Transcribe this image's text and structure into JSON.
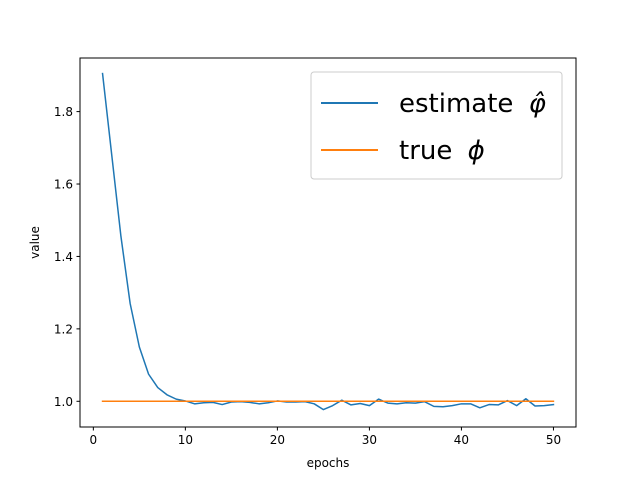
{
  "chart_data": {
    "type": "line",
    "title": "",
    "xlabel": "epochs",
    "ylabel": "value",
    "xlim": [
      -1.45,
      52.45
    ],
    "ylim": [
      0.929,
      1.948
    ],
    "xticks": [
      0,
      10,
      20,
      30,
      40,
      50
    ],
    "yticks": [
      1.0,
      1.2,
      1.4,
      1.6,
      1.8
    ],
    "ytick_labels": [
      "1.0",
      "1.2",
      "1.4",
      "1.6",
      "1.8"
    ],
    "grid": false,
    "legend_position": "top-right",
    "x": [
      1,
      2,
      3,
      4,
      5,
      6,
      7,
      8,
      9,
      10,
      11,
      12,
      13,
      14,
      15,
      16,
      17,
      18,
      19,
      20,
      21,
      22,
      23,
      24,
      25,
      26,
      27,
      28,
      29,
      30,
      31,
      32,
      33,
      34,
      35,
      36,
      37,
      38,
      39,
      40,
      41,
      42,
      43,
      44,
      45,
      46,
      47,
      48,
      49,
      50
    ],
    "series": [
      {
        "name": "estimate",
        "legend_symbol": "φ̂",
        "color": "#1f77b4",
        "values": [
          1.905,
          1.68,
          1.455,
          1.27,
          1.15,
          1.075,
          1.038,
          1.018,
          1.006,
          1.001,
          0.993,
          0.996,
          0.997,
          0.991,
          0.998,
          0.999,
          0.997,
          0.993,
          0.996,
          1.001,
          0.998,
          0.998,
          0.999,
          0.993,
          0.977,
          0.988,
          1.003,
          0.99,
          0.994,
          0.988,
          1.006,
          0.995,
          0.993,
          0.996,
          0.995,
          0.999,
          0.986,
          0.985,
          0.988,
          0.993,
          0.993,
          0.982,
          0.991,
          0.99,
          1.002,
          0.988,
          1.007,
          0.987,
          0.988,
          0.991
        ]
      },
      {
        "name": "true",
        "legend_symbol": "ϕ",
        "color": "#ff7f0e",
        "values": [
          1,
          1,
          1,
          1,
          1,
          1,
          1,
          1,
          1,
          1,
          1,
          1,
          1,
          1,
          1,
          1,
          1,
          1,
          1,
          1,
          1,
          1,
          1,
          1,
          1,
          1,
          1,
          1,
          1,
          1,
          1,
          1,
          1,
          1,
          1,
          1,
          1,
          1,
          1,
          1,
          1,
          1,
          1,
          1,
          1,
          1,
          1,
          1,
          1,
          1
        ]
      }
    ]
  }
}
